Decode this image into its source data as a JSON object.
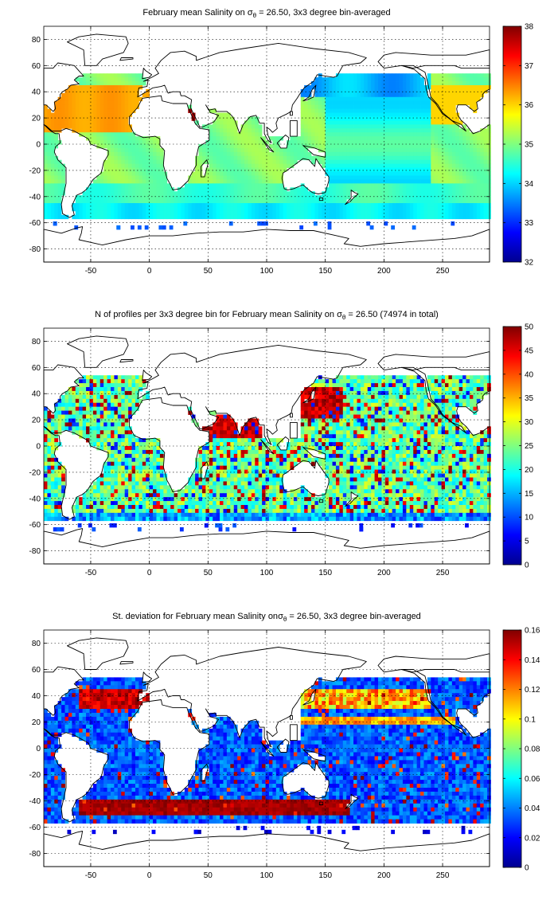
{
  "chart_data": [
    {
      "type": "heatmap",
      "title_pre": "February mean Salinity on ",
      "title_sigma": "σ",
      "title_sub": "θ",
      "title_post": " = 26.50, 3x3 degree bin-averaged",
      "x_ticks": [
        -50,
        0,
        50,
        100,
        150,
        200,
        250
      ],
      "y_ticks": [
        80,
        60,
        40,
        20,
        0,
        -20,
        -40,
        -60,
        -80
      ],
      "xlim": [
        -90,
        290
      ],
      "ylim": [
        -90,
        90
      ],
      "colorbar_ticks": [
        38,
        37,
        36,
        35,
        34,
        33,
        32
      ],
      "colorbar_range": [
        32,
        38
      ],
      "colormap": "jet"
    },
    {
      "type": "heatmap",
      "title_pre": "N of profiles per 3x3 degree bin for February mean Salinity on ",
      "title_sigma": "σ",
      "title_sub": "θ",
      "title_post": " = 26.50 (74974 in total)",
      "x_ticks": [
        -50,
        0,
        50,
        100,
        150,
        200,
        250
      ],
      "y_ticks": [
        80,
        60,
        40,
        20,
        0,
        -20,
        -40,
        -60,
        -80
      ],
      "xlim": [
        -90,
        290
      ],
      "ylim": [
        -90,
        90
      ],
      "colorbar_ticks": [
        50,
        45,
        40,
        35,
        30,
        25,
        20,
        15,
        10,
        5,
        0
      ],
      "colorbar_range": [
        0,
        50
      ],
      "colormap": "jet"
    },
    {
      "type": "heatmap",
      "title_pre": "St. deviation for February mean Salinity on",
      "title_sigma": "σ",
      "title_sub": "θ",
      "title_post": " = 26.50, 3x3 degree bin-averaged",
      "x_ticks": [
        -50,
        0,
        50,
        100,
        150,
        200,
        250
      ],
      "y_ticks": [
        80,
        60,
        40,
        20,
        0,
        -20,
        -40,
        -60,
        -80
      ],
      "xlim": [
        -90,
        290
      ],
      "ylim": [
        -90,
        90
      ],
      "colorbar_ticks": [
        "0.16",
        "0.14",
        "0.12",
        "0.1",
        "0.08",
        "0.06",
        "0.04",
        "0.02",
        "0"
      ],
      "colorbar_range": [
        0,
        0.16
      ],
      "colormap": "jet"
    }
  ]
}
